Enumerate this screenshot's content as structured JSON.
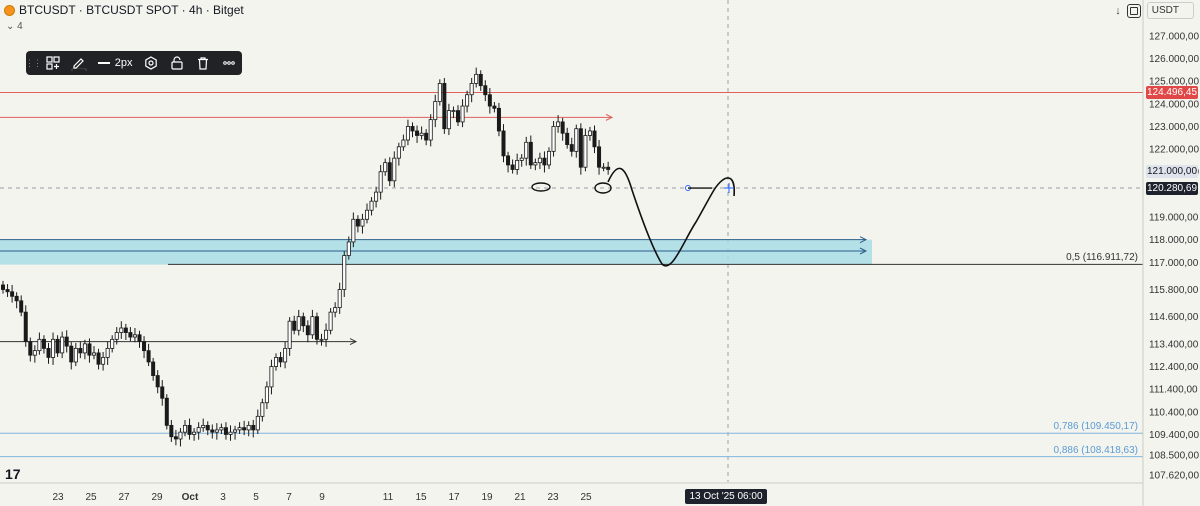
{
  "header": {
    "title": "BTCUSDT · BTCUSDT SPOT · 4h · Bitget",
    "indicator_count": "4",
    "currency": "USDT"
  },
  "toolbar": {
    "line_width_label": "2px"
  },
  "colors": {
    "background": "#f3f4ee",
    "candle": "#1a1a1a",
    "red_line": "#e0605c",
    "red_price_tag": "#e04848",
    "blue_zone": "#a8dde6",
    "fib_label": "#5b9bd5",
    "current_price_tag": "#1e222d",
    "dashed_tag": "#dfe3eb"
  },
  "chart_data": {
    "type": "candlestick",
    "symbol": "BTCUSDT",
    "timeframe": "4h",
    "ylim": [
      107300,
      127700
    ],
    "y_ticks": [
      "127.000,00",
      "126.000,00",
      "125.000,00",
      "124.000,00",
      "123.000,00",
      "122.000,00",
      "121.000,00",
      "119.000,00",
      "118.000,00",
      "117.000,00",
      "115.800,00",
      "114.600,00",
      "113.400,00",
      "112.400,00",
      "111.400,00",
      "110.400,00",
      "109.400,00",
      "108.500,00",
      "107.620,00"
    ],
    "x_ticks": [
      "23",
      "25",
      "27",
      "29",
      "Oct",
      "3",
      "5",
      "7",
      "9",
      "11",
      "15",
      "17",
      "19",
      "21",
      "23",
      "25"
    ],
    "price_labels": {
      "red_line": "124.496,45",
      "dashed": "121.000,00",
      "current": "120.280,69"
    },
    "fib_levels": [
      {
        "label": "0,5 (116.911,72)",
        "value": 116911.72
      },
      {
        "label": "0,786 (109.450,17)",
        "value": 109450.17
      },
      {
        "label": "0,886 (108.418,63)",
        "value": 108418.63
      }
    ],
    "crosshair_time": "13 Oct '25   06:00",
    "candles_close": [
      115800,
      115700,
      115500,
      115300,
      114800,
      113500,
      112900,
      113100,
      113600,
      113200,
      112800,
      113600,
      113000,
      113700,
      113300,
      112600,
      113200,
      113000,
      113400,
      112900,
      113000,
      112500,
      112800,
      113200,
      113600,
      113900,
      114100,
      113900,
      113700,
      113800,
      113500,
      113100,
      112600,
      112000,
      111500,
      111000,
      109800,
      109300,
      109200,
      109500,
      109800,
      109400,
      109500,
      109700,
      109800,
      109600,
      109500,
      109600,
      109700,
      109400,
      109500,
      109600,
      109700,
      109600,
      109800,
      109600,
      110200,
      110800,
      111500,
      112400,
      112800,
      112600,
      113200,
      114400,
      114000,
      114600,
      114200,
      113800,
      114600,
      113600,
      113600,
      114000,
      114800,
      115000,
      115800,
      117300,
      117900,
      118900,
      118600,
      118900,
      119300,
      119700,
      120100,
      121000,
      121400,
      120600,
      121600,
      122100,
      122400,
      123000,
      122800,
      122600,
      122700,
      122400,
      123300,
      124100,
      124900,
      122900,
      123700,
      123700,
      123200,
      123900,
      124400,
      124900,
      125300,
      124800,
      124400,
      123900,
      123800,
      122800,
      121700,
      121300,
      121100,
      121500,
      121600,
      122300,
      121300,
      121400,
      121600,
      121300,
      121900,
      123000,
      123200,
      122700,
      122200,
      121900,
      122900,
      121200,
      122600,
      122800,
      122100,
      121200,
      121200,
      121100
    ]
  },
  "drawings": {
    "horizontal_lines": [
      {
        "value": 124496.45,
        "color": "red"
      },
      {
        "value": 123400,
        "color": "red",
        "arrow": true
      },
      {
        "value": 113500,
        "color": "dark",
        "arrow": true
      },
      {
        "value": 116911.72,
        "color": "dark",
        "fib": "0,5"
      },
      {
        "value": 109450.17,
        "color": "blue",
        "fib": "0,786"
      },
      {
        "value": 108418.63,
        "color": "blue",
        "fib": "0,886"
      }
    ],
    "zone": {
      "top": 118000,
      "bottom": 116900
    }
  }
}
